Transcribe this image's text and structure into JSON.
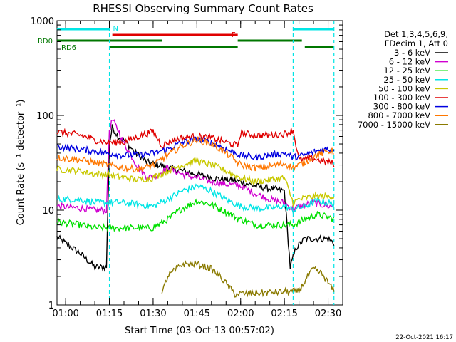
{
  "chart_data": {
    "type": "line",
    "title": "RHESSI Observing Summary Count Rates",
    "xlabel": "Start Time (03-Oct-13 00:57:02)",
    "ylabel": "Count Rate (s⁻¹ detector⁻¹)",
    "y_scale": "log",
    "ylim": [
      1,
      1000
    ],
    "xlim": [
      "00:57:02",
      "02:35:00"
    ],
    "x_ticks": [
      "01:00",
      "01:15",
      "01:30",
      "01:45",
      "02:00",
      "02:15",
      "02:30"
    ],
    "y_ticks": [
      "1",
      "10",
      "100",
      "1000"
    ],
    "grid": false,
    "legend_position": "right",
    "legend_header": [
      "Det 1,3,4,5,6,9,",
      "FDecim 1, Att 0"
    ],
    "footer_timestamp": "22-Oct-2021 16:17",
    "night_markers": [
      "01:15",
      "02:18",
      "02:32"
    ],
    "flag_bars": [
      {
        "label": "N",
        "color": "#00e5e5",
        "segments": [
          [
            "00:57",
            "01:15"
          ],
          [
            "02:18",
            "02:32"
          ]
        ]
      },
      {
        "label": "F",
        "color": "#e00000",
        "segments": [
          [
            "01:16",
            "01:59"
          ]
        ]
      },
      {
        "label": "RD0",
        "color": "#007700",
        "segments": [
          [
            "00:57",
            "01:33"
          ],
          [
            "01:59",
            "02:21"
          ]
        ]
      },
      {
        "label": "RD6",
        "color": "#007700",
        "segments": [
          [
            "01:15",
            "01:59"
          ],
          [
            "02:22",
            "02:32"
          ]
        ]
      }
    ],
    "series": [
      {
        "name": "3 - 6 keV",
        "color": "#000000",
        "points": [
          [
            "00:57",
            5.2
          ],
          [
            "01:05",
            3.5
          ],
          [
            "01:10",
            2.5
          ],
          [
            "01:14",
            2.5
          ],
          [
            "01:15",
            50
          ],
          [
            "01:16",
            75
          ],
          [
            "01:18",
            60
          ],
          [
            "01:20",
            55
          ],
          [
            "01:24",
            40
          ],
          [
            "01:28",
            32
          ],
          [
            "01:32",
            30
          ],
          [
            "01:35",
            28
          ],
          [
            "01:40",
            26
          ],
          [
            "01:45",
            24
          ],
          [
            "01:50",
            22
          ],
          [
            "02:00",
            20
          ],
          [
            "02:05",
            18
          ],
          [
            "02:10",
            17
          ],
          [
            "02:15",
            16
          ],
          [
            "02:17",
            2.5
          ],
          [
            "02:19",
            4
          ],
          [
            "02:22",
            5
          ],
          [
            "02:25",
            5
          ],
          [
            "02:30",
            5
          ],
          [
            "02:32",
            4.5
          ]
        ]
      },
      {
        "name": "6 - 12 keV",
        "color": "#d000d0",
        "points": [
          [
            "00:57",
            11
          ],
          [
            "01:05",
            10.5
          ],
          [
            "01:10",
            10
          ],
          [
            "01:14",
            10
          ],
          [
            "01:15",
            70
          ],
          [
            "01:16",
            90
          ],
          [
            "01:18",
            70
          ],
          [
            "01:20",
            50
          ],
          [
            "01:22",
            40
          ],
          [
            "01:25",
            28
          ],
          [
            "01:28",
            22
          ],
          [
            "01:32",
            24
          ],
          [
            "01:35",
            28
          ],
          [
            "01:40",
            24
          ],
          [
            "01:45",
            22
          ],
          [
            "01:50",
            20
          ],
          [
            "02:00",
            18
          ],
          [
            "02:05",
            15
          ],
          [
            "02:10",
            13
          ],
          [
            "02:15",
            12
          ],
          [
            "02:18",
            10
          ],
          [
            "02:20",
            11
          ],
          [
            "02:25",
            12
          ],
          [
            "02:30",
            11
          ],
          [
            "02:32",
            11
          ]
        ]
      },
      {
        "name": "12 - 25 keV",
        "color": "#00e000",
        "points": [
          [
            "00:57",
            7.5
          ],
          [
            "01:05",
            7
          ],
          [
            "01:10",
            6.5
          ],
          [
            "01:14",
            6.5
          ],
          [
            "01:20",
            6.5
          ],
          [
            "01:25",
            6.5
          ],
          [
            "01:30",
            6.5
          ],
          [
            "01:35",
            8
          ],
          [
            "01:40",
            10.5
          ],
          [
            "01:45",
            12.5
          ],
          [
            "01:50",
            11.5
          ],
          [
            "01:55",
            9.5
          ],
          [
            "02:00",
            8
          ],
          [
            "02:05",
            7
          ],
          [
            "02:10",
            7
          ],
          [
            "02:15",
            7
          ],
          [
            "02:18",
            7
          ],
          [
            "02:22",
            8
          ],
          [
            "02:26",
            9
          ],
          [
            "02:30",
            8.5
          ],
          [
            "02:32",
            8
          ]
        ]
      },
      {
        "name": "25 - 50 keV",
        "color": "#00e5e5",
        "points": [
          [
            "00:57",
            13
          ],
          [
            "01:05",
            13
          ],
          [
            "01:10",
            12
          ],
          [
            "01:14",
            12
          ],
          [
            "01:20",
            12
          ],
          [
            "01:25",
            11.5
          ],
          [
            "01:30",
            11
          ],
          [
            "01:35",
            13
          ],
          [
            "01:40",
            16
          ],
          [
            "01:45",
            18
          ],
          [
            "01:50",
            16
          ],
          [
            "01:55",
            13
          ],
          [
            "02:00",
            11
          ],
          [
            "02:05",
            10.5
          ],
          [
            "02:10",
            10.5
          ],
          [
            "02:15",
            11
          ],
          [
            "02:18",
            10
          ],
          [
            "02:22",
            11
          ],
          [
            "02:26",
            12.5
          ],
          [
            "02:30",
            12
          ],
          [
            "02:32",
            11.5
          ]
        ]
      },
      {
        "name": "50 - 100 keV",
        "color": "#c8c800",
        "points": [
          [
            "00:57",
            27
          ],
          [
            "01:05",
            26
          ],
          [
            "01:10",
            24
          ],
          [
            "01:14",
            24
          ],
          [
            "01:20",
            22
          ],
          [
            "01:25",
            21
          ],
          [
            "01:30",
            22
          ],
          [
            "01:35",
            26
          ],
          [
            "01:40",
            30
          ],
          [
            "01:45",
            33
          ],
          [
            "01:50",
            30
          ],
          [
            "01:55",
            26
          ],
          [
            "02:00",
            22
          ],
          [
            "02:05",
            20
          ],
          [
            "02:10",
            21
          ],
          [
            "02:15",
            22
          ],
          [
            "02:18",
            12
          ],
          [
            "02:20",
            13
          ],
          [
            "02:25",
            14
          ],
          [
            "02:30",
            14
          ],
          [
            "02:32",
            14
          ]
        ]
      },
      {
        "name": "100 - 300 keV",
        "color": "#e00000",
        "points": [
          [
            "00:57",
            67
          ],
          [
            "01:05",
            62
          ],
          [
            "01:10",
            55
          ],
          [
            "01:14",
            52
          ],
          [
            "01:20",
            52
          ],
          [
            "01:25",
            60
          ],
          [
            "01:30",
            68
          ],
          [
            "01:33",
            48
          ],
          [
            "01:37",
            55
          ],
          [
            "01:40",
            58
          ],
          [
            "01:45",
            60
          ],
          [
            "01:50",
            58
          ],
          [
            "01:55",
            52
          ],
          [
            "01:59",
            48
          ],
          [
            "02:00",
            65
          ],
          [
            "02:05",
            62
          ],
          [
            "02:10",
            62
          ],
          [
            "02:15",
            64
          ],
          [
            "02:18",
            70
          ],
          [
            "02:20",
            34
          ],
          [
            "02:25",
            35
          ],
          [
            "02:30",
            32
          ],
          [
            "02:32",
            31
          ]
        ]
      },
      {
        "name": "300 - 800 keV",
        "color": "#0000e0",
        "points": [
          [
            "00:57",
            47
          ],
          [
            "01:05",
            44
          ],
          [
            "01:10",
            42
          ],
          [
            "01:14",
            40
          ],
          [
            "01:20",
            38
          ],
          [
            "01:25",
            38
          ],
          [
            "01:30",
            40
          ],
          [
            "01:35",
            44
          ],
          [
            "01:40",
            52
          ],
          [
            "01:45",
            56
          ],
          [
            "01:50",
            52
          ],
          [
            "01:55",
            44
          ],
          [
            "02:00",
            38
          ],
          [
            "02:05",
            36
          ],
          [
            "02:10",
            38
          ],
          [
            "02:15",
            40
          ],
          [
            "02:18",
            36
          ],
          [
            "02:22",
            38
          ],
          [
            "02:26",
            42
          ],
          [
            "02:30",
            44
          ],
          [
            "02:32",
            44
          ]
        ]
      },
      {
        "name": "800 - 7000 keV",
        "color": "#ff7700",
        "points": [
          [
            "00:57",
            36
          ],
          [
            "01:05",
            34
          ],
          [
            "01:10",
            32
          ],
          [
            "01:14",
            30
          ],
          [
            "01:20",
            28
          ],
          [
            "01:25",
            27
          ],
          [
            "01:30",
            30
          ],
          [
            "01:35",
            38
          ],
          [
            "01:40",
            48
          ],
          [
            "01:45",
            55
          ],
          [
            "01:50",
            50
          ],
          [
            "01:55",
            40
          ],
          [
            "02:00",
            30
          ],
          [
            "02:05",
            28
          ],
          [
            "02:10",
            29
          ],
          [
            "02:15",
            31
          ],
          [
            "02:18",
            28
          ],
          [
            "02:22",
            32
          ],
          [
            "02:26",
            38
          ],
          [
            "02:30",
            42
          ],
          [
            "02:32",
            42
          ]
        ]
      },
      {
        "name": "7000 - 15000 keV",
        "color": "#8a7a00",
        "points": [
          [
            "01:33",
            1.3
          ],
          [
            "01:35",
            2
          ],
          [
            "01:38",
            2.4
          ],
          [
            "01:40",
            2.7
          ],
          [
            "01:45",
            2.7
          ],
          [
            "01:50",
            2.4
          ],
          [
            "01:53",
            2
          ],
          [
            "01:58",
            1.3
          ],
          [
            "02:20",
            1.4
          ],
          [
            "02:23",
            2
          ],
          [
            "02:25",
            2.4
          ],
          [
            "02:28",
            2.1
          ],
          [
            "02:32",
            1.4
          ]
        ]
      }
    ]
  }
}
